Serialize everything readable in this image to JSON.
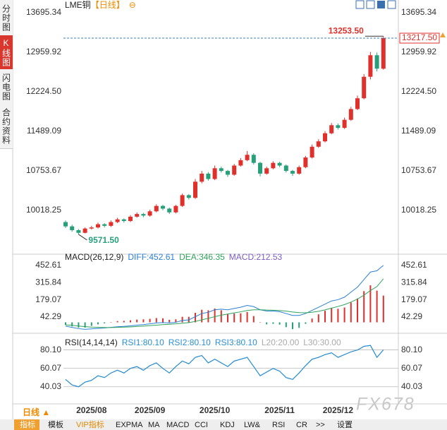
{
  "sidebar": [
    "分时图",
    "K线图",
    "闪电图",
    "合约资料"
  ],
  "period_button": "日线 ▲",
  "watermark": "FX678",
  "toolbar": [
    "指标",
    "模板",
    "VIP指标",
    "EXPMA",
    "MA",
    "MACD",
    "CCI",
    "KDJ",
    "LW&",
    "RSI",
    "CR",
    ">>",
    "设置"
  ],
  "chart_data": [
    {
      "type": "candlestick",
      "title": "LME铜",
      "subtitle": "【日线】",
      "title_icon": "⊖",
      "up_color": "#e0302c",
      "down_color": "#27a07a",
      "grid": false,
      "open": [
        9800,
        9720,
        9650,
        9600,
        9680,
        9700,
        9760,
        9730,
        9800,
        9850,
        9820,
        9900,
        9950,
        9920,
        10000,
        10100,
        10050,
        9980,
        10100,
        10300,
        10250,
        10550,
        10700,
        10600,
        10800,
        10750,
        10680,
        10850,
        10950,
        11050,
        10900,
        10700,
        10800,
        10900,
        10850,
        10750,
        10700,
        10820,
        11000,
        11200,
        11300,
        11450,
        11600,
        11550,
        11700,
        11900,
        12100,
        12500,
        12900,
        12650
      ],
      "high": [
        9830,
        9750,
        9670,
        9700,
        9730,
        9790,
        9780,
        9830,
        9880,
        9870,
        9930,
        9980,
        9970,
        10030,
        10130,
        10120,
        10070,
        10120,
        10330,
        10320,
        10600,
        10750,
        10730,
        10850,
        10830,
        10770,
        10880,
        10990,
        11120,
        11080,
        10920,
        10830,
        10930,
        10920,
        10870,
        10770,
        10850,
        11030,
        11240,
        11340,
        11490,
        11640,
        11630,
        11740,
        11940,
        12150,
        12550,
        12960,
        12950,
        13253.5
      ],
      "low": [
        9690,
        9620,
        9571.5,
        9590,
        9660,
        9680,
        9700,
        9710,
        9780,
        9790,
        9800,
        9880,
        9890,
        9900,
        9980,
        10020,
        9950,
        9960,
        10080,
        10220,
        10230,
        10520,
        10570,
        10580,
        10720,
        10640,
        10660,
        10830,
        10930,
        10870,
        10650,
        10680,
        10780,
        10820,
        10720,
        10660,
        10680,
        10800,
        10980,
        11180,
        11280,
        11430,
        11520,
        11530,
        11680,
        11880,
        12080,
        12450,
        12600,
        12630
      ],
      "close": [
        9720,
        9650,
        9600,
        9680,
        9700,
        9760,
        9730,
        9800,
        9850,
        9820,
        9900,
        9950,
        9920,
        10000,
        10100,
        10050,
        9980,
        10100,
        10300,
        10250,
        10550,
        10700,
        10600,
        10800,
        10750,
        10680,
        10850,
        10950,
        11050,
        10900,
        10700,
        10800,
        10900,
        10850,
        10750,
        10700,
        10820,
        11000,
        11200,
        11300,
        11450,
        11600,
        11550,
        11700,
        11900,
        12100,
        12500,
        12900,
        12650,
        13217.5
      ],
      "ylim": [
        9400,
        13900
      ],
      "yticks": [
        {
          "value": 13695.34,
          "label": "13695.34"
        },
        {
          "value": 12959.92,
          "label": "12959.92"
        },
        {
          "value": 12224.5,
          "label": "12224.50"
        },
        {
          "value": 11489.09,
          "label": "11489.09"
        },
        {
          "value": 10753.67,
          "label": "10753.67"
        },
        {
          "value": 10018.25,
          "label": "10018.25"
        }
      ],
      "max_label": {
        "value": 13253.5,
        "label": "13253.50"
      },
      "min_label": {
        "value": 9571.5,
        "label": "9571.50"
      },
      "last_price": {
        "value": 13217.5,
        "label": "13217.50"
      }
    },
    {
      "type": "macd",
      "title": "MACD(26,12,9)",
      "up_color": "#e0302c",
      "down_color": "#27a07a",
      "grid": false,
      "ylim": [
        -70,
        480
      ],
      "yticks": [
        452.61,
        315.84,
        179.07,
        42.29
      ],
      "series": [
        {
          "name": "DIFF:452.61",
          "color": "#2a7fd4",
          "values": [
            -30,
            -40,
            -50,
            -55,
            -52,
            -48,
            -45,
            -40,
            -35,
            -32,
            -28,
            -22,
            -18,
            -12,
            -5,
            -2,
            -5,
            0,
            15,
            20,
            45,
            70,
            80,
            100,
            105,
            100,
            110,
            120,
            135,
            125,
            100,
            90,
            90,
            85,
            70,
            55,
            55,
            70,
            95,
            120,
            145,
            170,
            180,
            200,
            240,
            280,
            340,
            400,
            410,
            452.61
          ]
        },
        {
          "name": "DEA:346.35",
          "color": "#2fa35c",
          "values": [
            -20,
            -24,
            -29,
            -34,
            -38,
            -40,
            -41,
            -41,
            -40,
            -38,
            -36,
            -33,
            -30,
            -26,
            -22,
            -18,
            -15,
            -12,
            -7,
            -2,
            7,
            20,
            32,
            45,
            57,
            66,
            75,
            84,
            94,
            100,
            100,
            98,
            96,
            94,
            89,
            82,
            77,
            76,
            80,
            88,
            99,
            113,
            126,
            141,
            161,
            185,
            216,
            253,
            284,
            346.35
          ]
        },
        {
          "name": "MACD:212.53",
          "color": "#7a5cc0",
          "values": [
            -20,
            -32,
            -42,
            -42,
            -28,
            -16,
            -8,
            2,
            10,
            12,
            16,
            22,
            24,
            28,
            34,
            32,
            20,
            24,
            44,
            44,
            76,
            100,
            96,
            110,
            96,
            68,
            70,
            72,
            82,
            50,
            0,
            -16,
            -12,
            -18,
            -38,
            -54,
            -44,
            -12,
            30,
            64,
            92,
            114,
            108,
            118,
            158,
            190,
            248,
            294,
            252,
            212.53
          ]
        }
      ]
    },
    {
      "type": "rsi",
      "title": "RSI(14,14,14)",
      "grid": true,
      "ylim": [
        26,
        89
      ],
      "yticks": [
        {
          "value": 80.1,
          "label": "80.10"
        },
        {
          "value": 60.07,
          "label": "60.07"
        },
        {
          "value": 40.03,
          "label": "40.03"
        }
      ],
      "series": [
        {
          "name": "RSI1:80.10",
          "color": "#2a8fd4",
          "values": [
            48,
            42,
            40,
            45,
            47,
            52,
            50,
            55,
            58,
            55,
            60,
            62,
            58,
            63,
            66,
            60,
            55,
            62,
            68,
            65,
            72,
            74,
            66,
            70,
            66,
            62,
            68,
            70,
            72,
            62,
            52,
            56,
            60,
            57,
            50,
            48,
            55,
            63,
            70,
            72,
            75,
            77,
            72,
            75,
            78,
            80,
            84,
            85,
            72,
            80.1
          ]
        },
        {
          "name": "RSI2:80.10",
          "color": "#2a8fd4",
          "values": [
            48,
            42,
            40,
            45,
            47,
            52,
            50,
            55,
            58,
            55,
            60,
            62,
            58,
            63,
            66,
            60,
            55,
            62,
            68,
            65,
            72,
            74,
            66,
            70,
            66,
            62,
            68,
            70,
            72,
            62,
            52,
            56,
            60,
            57,
            50,
            48,
            55,
            63,
            70,
            72,
            75,
            77,
            72,
            75,
            78,
            80,
            84,
            85,
            72,
            80.1
          ]
        },
        {
          "name": "RSI3:80.10",
          "color": "#2a8fd4",
          "values": [
            48,
            42,
            40,
            45,
            47,
            52,
            50,
            55,
            58,
            55,
            60,
            62,
            58,
            63,
            66,
            60,
            55,
            62,
            68,
            65,
            72,
            74,
            66,
            70,
            66,
            62,
            68,
            70,
            72,
            62,
            52,
            56,
            60,
            57,
            50,
            48,
            55,
            63,
            70,
            72,
            75,
            77,
            72,
            75,
            78,
            80,
            84,
            85,
            72,
            80.1
          ]
        }
      ],
      "extra_legend": [
        "L20:20.00",
        "L30:30.00"
      ],
      "xticks": [
        {
          "value": 4,
          "label": "2025/08"
        },
        {
          "value": 13,
          "label": "2025/09"
        },
        {
          "value": 23,
          "label": "2025/10"
        },
        {
          "value": 33,
          "label": "2025/11"
        },
        {
          "value": 42,
          "label": "2025/12"
        }
      ]
    }
  ]
}
